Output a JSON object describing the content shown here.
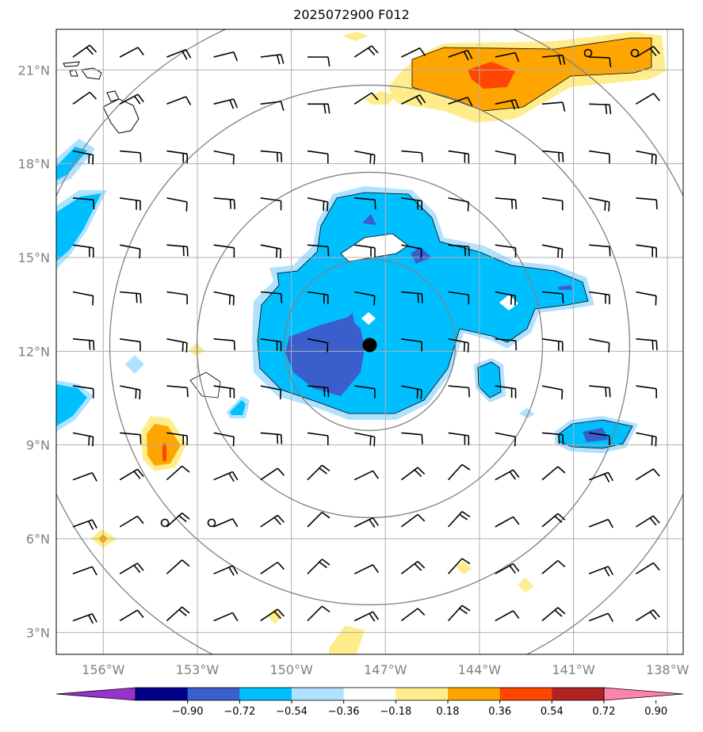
{
  "title": "2025072900 F012",
  "map": {
    "lat_labels": [
      "21°N",
      "18°N",
      "15°N",
      "12°N",
      "9°N",
      "6°N",
      "3°N"
    ],
    "lon_labels": [
      "156°W",
      "153°W",
      "150°W",
      "147°W",
      "144°W",
      "141°W",
      "138°W"
    ],
    "lat_values": [
      21,
      18,
      15,
      12,
      9,
      6,
      3
    ],
    "lon_values": [
      -156,
      -153,
      -150,
      -147,
      -144,
      -141,
      -138
    ],
    "extent": {
      "lon_min": -157.5,
      "lon_max": -137.5,
      "lat_min": 2.3,
      "lat_max": 22.3
    },
    "storm_center": {
      "lat": 12.2,
      "lon": -147.5
    },
    "range_rings": "concentric circles around storm center",
    "gridlines": true,
    "colors": {
      "ring": "#808080",
      "grid": "#b0b0b0",
      "barb": "#000000",
      "coast": "#000000"
    }
  },
  "colorbar": {
    "levels": [
      "−0.90",
      "−0.72",
      "−0.54",
      "−0.36",
      "−0.18",
      "0.18",
      "0.36",
      "0.54",
      "0.72",
      "0.90"
    ],
    "colors": [
      "#9932CC",
      "#00008B",
      "#3A5FCD",
      "#00BFFF",
      "#B0E2FF",
      "#FFFFFF",
      "#FFEC8B",
      "#FFA500",
      "#FF4500",
      "#B22222",
      "#FF82AB"
    ],
    "extend": "both"
  }
}
